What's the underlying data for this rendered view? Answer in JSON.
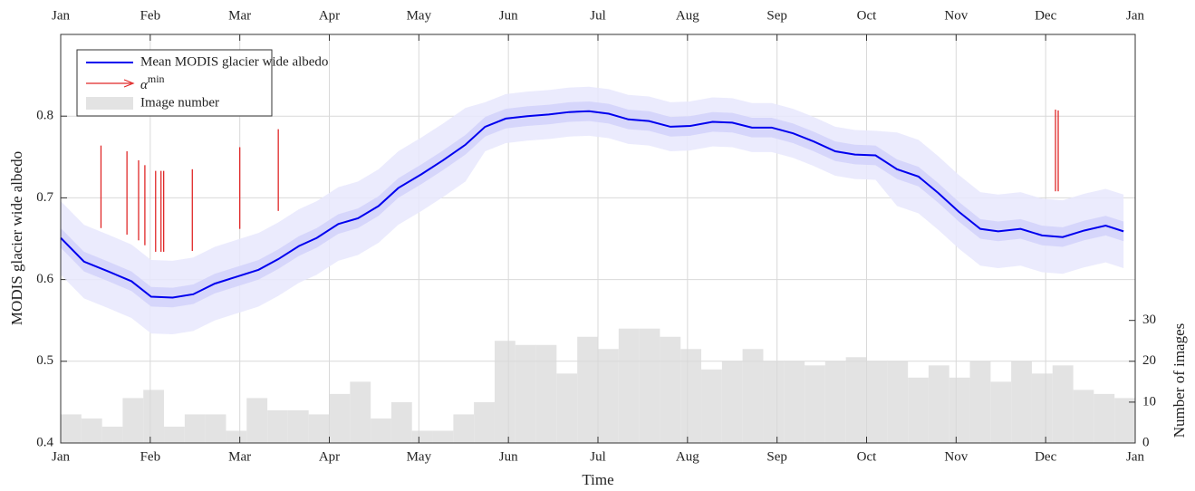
{
  "chart_data": {
    "type": "line",
    "xlabel": "Time",
    "ylabel": "MODIS glacier wide albedo",
    "y2label": "Number of images",
    "xlim": [
      0,
      12
    ],
    "xticks": [
      {
        "value": 0,
        "label": "Jan"
      },
      {
        "value": 1,
        "label": "Feb"
      },
      {
        "value": 2,
        "label": "Mar"
      },
      {
        "value": 3,
        "label": "Apr"
      },
      {
        "value": 4,
        "label": "May"
      },
      {
        "value": 5,
        "label": "Jun"
      },
      {
        "value": 6,
        "label": "Jul"
      },
      {
        "value": 7,
        "label": "Aug"
      },
      {
        "value": 8,
        "label": "Sep"
      },
      {
        "value": 9,
        "label": "Oct"
      },
      {
        "value": 10,
        "label": "Nov"
      },
      {
        "value": 11,
        "label": "Dec"
      },
      {
        "value": 12,
        "label": "Jan"
      }
    ],
    "ylim": [
      0.4,
      0.9
    ],
    "yticks": [
      0.4,
      0.5,
      0.6,
      0.7,
      0.8
    ],
    "y2lim": [
      0,
      100
    ],
    "y2ticks": [
      0,
      10,
      20,
      30
    ],
    "grid": true,
    "legend": "upper left",
    "x": [
      0,
      0.26,
      0.53,
      0.79,
      1.01,
      1.25,
      1.48,
      1.72,
      1.95,
      2.21,
      2.43,
      2.66,
      2.86,
      3.1,
      3.32,
      3.55,
      3.77,
      4.03,
      4.27,
      4.52,
      4.74,
      4.97,
      5.21,
      5.45,
      5.68,
      5.9,
      6.12,
      6.34,
      6.57,
      6.81,
      7.03,
      7.28,
      7.5,
      7.72,
      7.94,
      8.18,
      8.41,
      8.65,
      8.87,
      9.1,
      9.34,
      9.58,
      9.8,
      10.03,
      10.27,
      10.47,
      10.72,
      10.96,
      11.19,
      11.43,
      11.67,
      11.87
    ],
    "series": [
      {
        "name": "Mean MODIS glacier wide albedo",
        "color": "#0000ee",
        "values": [
          0.651,
          0.622,
          0.61,
          0.598,
          0.579,
          0.578,
          0.582,
          0.595,
          0.603,
          0.612,
          0.625,
          0.641,
          0.651,
          0.668,
          0.675,
          0.69,
          0.712,
          0.729,
          0.746,
          0.765,
          0.787,
          0.797,
          0.8,
          0.802,
          0.805,
          0.806,
          0.803,
          0.796,
          0.794,
          0.787,
          0.788,
          0.793,
          0.792,
          0.786,
          0.786,
          0.779,
          0.769,
          0.757,
          0.753,
          0.752,
          0.735,
          0.726,
          0.706,
          0.683,
          0.662,
          0.659,
          0.662,
          0.654,
          0.652,
          0.66,
          0.666,
          0.659
        ]
      }
    ],
    "bands": [
      {
        "color": "#e8e8fd",
        "upper": [
          0.696,
          0.667,
          0.655,
          0.643,
          0.624,
          0.623,
          0.627,
          0.64,
          0.648,
          0.657,
          0.67,
          0.686,
          0.696,
          0.713,
          0.72,
          0.735,
          0.757,
          0.774,
          0.791,
          0.81,
          0.817,
          0.827,
          0.83,
          0.832,
          0.835,
          0.836,
          0.833,
          0.826,
          0.824,
          0.817,
          0.818,
          0.823,
          0.822,
          0.816,
          0.816,
          0.809,
          0.799,
          0.787,
          0.783,
          0.782,
          0.78,
          0.771,
          0.751,
          0.728,
          0.707,
          0.704,
          0.707,
          0.699,
          0.697,
          0.705,
          0.711,
          0.704
        ],
        "lower": [
          0.606,
          0.577,
          0.565,
          0.553,
          0.534,
          0.533,
          0.537,
          0.55,
          0.558,
          0.567,
          0.58,
          0.596,
          0.606,
          0.623,
          0.63,
          0.645,
          0.667,
          0.684,
          0.701,
          0.72,
          0.757,
          0.767,
          0.77,
          0.772,
          0.775,
          0.776,
          0.773,
          0.766,
          0.764,
          0.757,
          0.758,
          0.763,
          0.762,
          0.756,
          0.756,
          0.749,
          0.739,
          0.727,
          0.723,
          0.722,
          0.69,
          0.681,
          0.661,
          0.638,
          0.617,
          0.614,
          0.617,
          0.609,
          0.607,
          0.615,
          0.621,
          0.614
        ]
      },
      {
        "color": "#d2d2fa",
        "upper": [
          0.663,
          0.634,
          0.622,
          0.61,
          0.591,
          0.59,
          0.594,
          0.607,
          0.615,
          0.624,
          0.637,
          0.653,
          0.663,
          0.68,
          0.687,
          0.702,
          0.724,
          0.741,
          0.758,
          0.777,
          0.799,
          0.809,
          0.812,
          0.814,
          0.817,
          0.818,
          0.815,
          0.808,
          0.806,
          0.799,
          0.8,
          0.805,
          0.804,
          0.798,
          0.798,
          0.791,
          0.781,
          0.769,
          0.765,
          0.764,
          0.747,
          0.738,
          0.718,
          0.695,
          0.674,
          0.671,
          0.674,
          0.666,
          0.664,
          0.672,
          0.678,
          0.671
        ],
        "lower": [
          0.639,
          0.61,
          0.598,
          0.586,
          0.567,
          0.566,
          0.57,
          0.583,
          0.591,
          0.6,
          0.613,
          0.629,
          0.639,
          0.656,
          0.663,
          0.678,
          0.7,
          0.717,
          0.734,
          0.753,
          0.775,
          0.785,
          0.788,
          0.79,
          0.793,
          0.794,
          0.791,
          0.784,
          0.782,
          0.775,
          0.776,
          0.781,
          0.78,
          0.774,
          0.774,
          0.767,
          0.757,
          0.745,
          0.741,
          0.74,
          0.723,
          0.714,
          0.694,
          0.671,
          0.65,
          0.647,
          0.65,
          0.642,
          0.64,
          0.648,
          0.654,
          0.647
        ]
      }
    ],
    "alpha_min": {
      "name": "α",
      "superscript": "min",
      "color": "#e02828",
      "x": [
        0.45,
        0.74,
        0.87,
        0.94,
        1.06,
        1.12,
        1.15,
        1.47,
        2.0,
        2.43,
        11.11,
        11.14
      ],
      "low": [
        0.663,
        0.655,
        0.648,
        0.642,
        0.634,
        0.634,
        0.634,
        0.635,
        0.662,
        0.684,
        0.708,
        0.708
      ],
      "high": [
        0.764,
        0.757,
        0.746,
        0.74,
        0.733,
        0.733,
        0.733,
        0.735,
        0.762,
        0.784,
        0.808,
        0.807
      ]
    },
    "histogram": {
      "name": "Image number",
      "color": "#e3e3e3",
      "axis": "y2",
      "bins": [
        0,
        0.231,
        0.462,
        0.692,
        0.923,
        1.154,
        1.385,
        1.615,
        1.846,
        2.077,
        2.308,
        2.538,
        2.769,
        3,
        3.231,
        3.462,
        3.692,
        3.923,
        4.154,
        4.385,
        4.615,
        4.846,
        5.077,
        5.308,
        5.538,
        5.769,
        6,
        6.231,
        6.462,
        6.692,
        6.923,
        7.154,
        7.385,
        7.615,
        7.846,
        8.077,
        8.308,
        8.538,
        8.769,
        9,
        9.231,
        9.462,
        9.692,
        9.923,
        10.154,
        10.385,
        10.615,
        10.846,
        11.077,
        11.308,
        11.538,
        11.769,
        12
      ],
      "counts": [
        7,
        6,
        4,
        11,
        13,
        4,
        7,
        7,
        3,
        11,
        8,
        8,
        7,
        12,
        15,
        6,
        10,
        3,
        3,
        7,
        10,
        25,
        24,
        24,
        17,
        26,
        23,
        28,
        28,
        26,
        23,
        18,
        20,
        23,
        20,
        20,
        19,
        20,
        21,
        20,
        20,
        16,
        19,
        16,
        20,
        15,
        20,
        17,
        19,
        13,
        12,
        11
      ]
    }
  }
}
